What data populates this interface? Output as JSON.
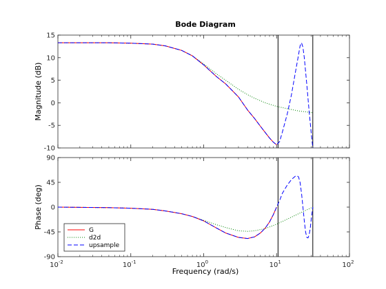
{
  "chart_data": {
    "type": "line",
    "title": "Bode Diagram",
    "xlabel": "Frequency  (rad/s)",
    "xscale": "log",
    "xlim": [
      0.01,
      100
    ],
    "x_ticks": [
      {
        "value": 0.01,
        "base": "10",
        "exp": "-2"
      },
      {
        "value": 0.1,
        "base": "10",
        "exp": "-1"
      },
      {
        "value": 1,
        "base": "10",
        "exp": "0"
      },
      {
        "value": 10,
        "base": "10",
        "exp": "1"
      },
      {
        "value": 100,
        "base": "10",
        "exp": "2"
      }
    ],
    "vertical_lines": [
      10.47,
      31.4
    ],
    "legend": {
      "position": "bottom-left",
      "entries": [
        "G",
        "d2d",
        "upsample"
      ]
    },
    "panels": [
      {
        "id": "magnitude",
        "ylabel": "Magnitude (dB)",
        "ylim": [
          -10,
          15
        ],
        "yticks": [
          "-10",
          "-5",
          "0",
          "5",
          "10",
          "15"
        ],
        "series": [
          {
            "name": "G",
            "color": "#ff0000",
            "style": "solid",
            "x": [
              0.01,
              0.05,
              0.1,
              0.2,
              0.3,
              0.5,
              0.7,
              1,
              1.5,
              2,
              3,
              4,
              5,
              6,
              7,
              8,
              9,
              10
            ],
            "y": [
              13.3,
              13.3,
              13.2,
              13.0,
              12.6,
              11.6,
              10.4,
              8.4,
              5.8,
              4.2,
              1.3,
              -1.6,
              -3.5,
              -5.2,
              -6.6,
              -7.8,
              -8.7,
              -9.3
            ]
          },
          {
            "name": "d2d",
            "color": "#008000",
            "style": "dotted",
            "x": [
              0.01,
              0.05,
              0.1,
              0.2,
              0.3,
              0.5,
              0.7,
              1,
              1.5,
              2,
              3,
              4,
              5,
              7,
              10,
              15,
              20,
              25,
              31.4
            ],
            "y": [
              13.3,
              13.3,
              13.2,
              13.0,
              12.6,
              11.6,
              10.4,
              8.6,
              6.4,
              5.0,
              3.0,
              1.8,
              1.0,
              0.0,
              -0.8,
              -1.4,
              -1.8,
              -2.0,
              -2.2
            ]
          },
          {
            "name": "upsample",
            "color": "#0000ff",
            "style": "dashed",
            "x": [
              0.01,
              0.05,
              0.1,
              0.2,
              0.3,
              0.5,
              0.7,
              1,
              1.5,
              2,
              3,
              4,
              5,
              6,
              7,
              8,
              9,
              10,
              11,
              12,
              14,
              16,
              18,
              20,
              21,
              22,
              23,
              24,
              26,
              28,
              30,
              31.4
            ],
            "y": [
              13.3,
              13.3,
              13.2,
              13.0,
              12.6,
              11.6,
              10.4,
              8.4,
              5.8,
              4.2,
              1.3,
              -1.6,
              -3.5,
              -5.2,
              -6.6,
              -7.8,
              -8.7,
              -9.3,
              -8.6,
              -6.5,
              -2.5,
              1.8,
              6.5,
              10.6,
              12.6,
              13.3,
              12.3,
              10.0,
              4.0,
              -2.0,
              -7.0,
              -10.0
            ]
          }
        ]
      },
      {
        "id": "phase",
        "ylabel": "Phase (deg)",
        "ylim": [
          -90,
          90
        ],
        "yticks": [
          "-90",
          "-45",
          "0",
          "45",
          "90"
        ],
        "series": [
          {
            "name": "G",
            "color": "#ff0000",
            "style": "solid",
            "x": [
              0.01,
              0.05,
              0.1,
              0.2,
              0.3,
              0.5,
              0.7,
              1,
              1.5,
              2,
              3,
              4,
              5,
              6,
              7,
              8,
              9,
              10
            ],
            "y": [
              0,
              -1,
              -2,
              -4,
              -7,
              -12,
              -17,
              -25,
              -38,
              -47,
              -55,
              -57,
              -54,
              -47,
              -38,
              -27,
              -14,
              0
            ]
          },
          {
            "name": "d2d",
            "color": "#008000",
            "style": "dotted",
            "x": [
              0.01,
              0.05,
              0.1,
              0.2,
              0.3,
              0.5,
              0.7,
              1,
              1.5,
              2,
              3,
              4,
              5,
              7,
              10,
              15,
              20,
              25,
              31.4
            ],
            "y": [
              0,
              -1,
              -2,
              -4,
              -7,
              -12,
              -17,
              -24,
              -32,
              -37,
              -43,
              -44,
              -43,
              -39,
              -31,
              -20,
              -12,
              -6,
              0
            ]
          },
          {
            "name": "upsample",
            "color": "#0000ff",
            "style": "dashed",
            "x": [
              0.01,
              0.05,
              0.1,
              0.2,
              0.3,
              0.5,
              0.7,
              1,
              1.5,
              2,
              3,
              4,
              5,
              6,
              7,
              8,
              9,
              10,
              11,
              12,
              14,
              16,
              18,
              19,
              20,
              21,
              22,
              23,
              24,
              25,
              26,
              27,
              28,
              29,
              30,
              31.4
            ],
            "y": [
              0,
              -1,
              -2,
              -4,
              -7,
              -12,
              -17,
              -25,
              -38,
              -47,
              -55,
              -57,
              -54,
              -47,
              -38,
              -27,
              -14,
              0,
              12,
              25,
              40,
              50,
              56,
              57,
              55,
              45,
              25,
              0,
              -25,
              -45,
              -55,
              -56,
              -50,
              -38,
              -20,
              0
            ]
          }
        ]
      }
    ]
  }
}
